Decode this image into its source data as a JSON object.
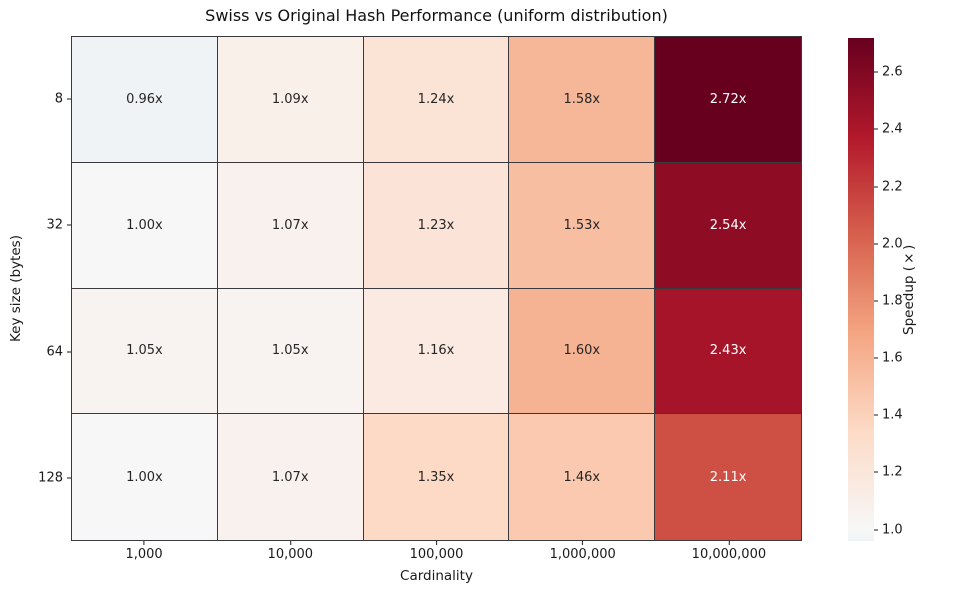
{
  "chart_data": {
    "type": "heatmap",
    "title": "Swiss vs Original Hash Performance (uniform distribution)",
    "xlabel": "Cardinality",
    "ylabel": "Key size (bytes)",
    "x_categories": [
      "1,000",
      "10,000",
      "100,000",
      "1,000,000",
      "10,000,000"
    ],
    "y_categories": [
      "8",
      "32",
      "64",
      "128"
    ],
    "values": [
      [
        0.96,
        1.09,
        1.24,
        1.58,
        2.72
      ],
      [
        1.0,
        1.07,
        1.23,
        1.53,
        2.54
      ],
      [
        1.05,
        1.05,
        1.16,
        1.6,
        2.43
      ],
      [
        1.0,
        1.07,
        1.35,
        1.46,
        2.11
      ]
    ],
    "cell_labels": [
      [
        "0.96x",
        "1.09x",
        "1.24x",
        "1.58x",
        "2.72x"
      ],
      [
        "1.00x",
        "1.07x",
        "1.23x",
        "1.53x",
        "2.54x"
      ],
      [
        "1.05x",
        "1.05x",
        "1.16x",
        "1.60x",
        "2.43x"
      ],
      [
        "1.00x",
        "1.07x",
        "1.35x",
        "1.46x",
        "2.11x"
      ]
    ],
    "cell_colors": [
      [
        "#f0f3f5",
        "#f9f0ea",
        "#fbe3d5",
        "#f6b798",
        "#67001f"
      ],
      [
        "#f7f7f7",
        "#f8f1ed",
        "#fbe4d7",
        "#f8bea2",
        "#8e0d25"
      ],
      [
        "#f8f3f0",
        "#f8f3f0",
        "#faeae1",
        "#f6b394",
        "#a61429"
      ],
      [
        "#f7f7f7",
        "#f8f1ed",
        "#fddac6",
        "#fac9b0",
        "#ce5045"
      ]
    ],
    "cell_text_colors": [
      [
        "#262626",
        "#262626",
        "#262626",
        "#262626",
        "#ffffff"
      ],
      [
        "#262626",
        "#262626",
        "#262626",
        "#262626",
        "#ffffff"
      ],
      [
        "#262626",
        "#262626",
        "#262626",
        "#262626",
        "#ffffff"
      ],
      [
        "#262626",
        "#262626",
        "#262626",
        "#262626",
        "#ffffff"
      ]
    ],
    "grid_line_color": "#3a3a3e",
    "colormap_name": "RdBu_r (centered at 1.0)",
    "vmin": 0.96,
    "vmax": 2.72,
    "legend_position": "right",
    "colorbar": {
      "label": "Speedup (×)",
      "ticks": [
        {
          "label": "1.0",
          "pos_pct": 2.27
        },
        {
          "label": "1.2",
          "pos_pct": 13.64
        },
        {
          "label": "1.4",
          "pos_pct": 25.0
        },
        {
          "label": "1.6",
          "pos_pct": 36.36
        },
        {
          "label": "1.8",
          "pos_pct": 47.73
        },
        {
          "label": "2.0",
          "pos_pct": 59.09
        },
        {
          "label": "2.2",
          "pos_pct": 70.45
        },
        {
          "label": "2.4",
          "pos_pct": 81.82
        },
        {
          "label": "2.6",
          "pos_pct": 93.18
        }
      ],
      "gradient_stops": [
        {
          "color": "#f0f3f5",
          "pos_pct": 0
        },
        {
          "color": "#f7f7f7",
          "pos_pct": 2.27
        },
        {
          "color": "#fddbc7",
          "pos_pct": 21.82
        },
        {
          "color": "#f4a582",
          "pos_pct": 41.36
        },
        {
          "color": "#d6604d",
          "pos_pct": 60.91
        },
        {
          "color": "#b2182b",
          "pos_pct": 80.45
        },
        {
          "color": "#67001f",
          "pos_pct": 100
        }
      ]
    }
  }
}
